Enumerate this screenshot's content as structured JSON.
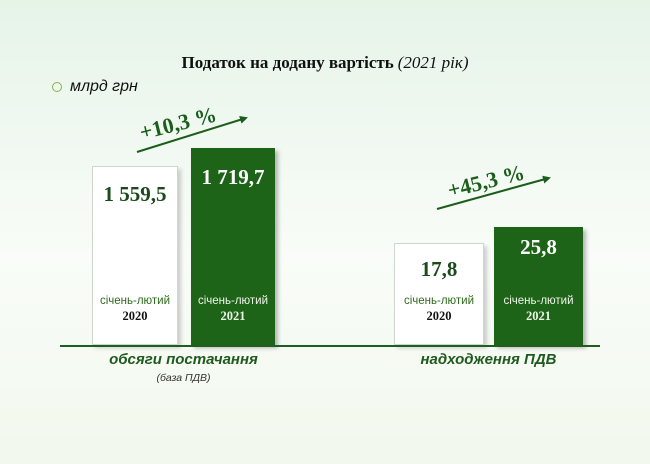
{
  "chart_data": {
    "type": "bar",
    "title": "Податок на додану вартість",
    "subtitle": "(2021 рік)",
    "unit": "млрд грн",
    "groups": [
      {
        "label": "обсяги постачання",
        "note": "(база ПДВ)",
        "change": "+10,3 %",
        "bars": [
          {
            "period": "січень-лютий",
            "year": "2020",
            "value": 1559.5,
            "label": "1 559,5"
          },
          {
            "period": "січень-лютий",
            "year": "2021",
            "value": 1719.7,
            "label": "1 719,7"
          }
        ]
      },
      {
        "label": "надходження ПДВ",
        "note": "",
        "change": "+45,3 %",
        "bars": [
          {
            "period": "січень-лютий",
            "year": "2020",
            "value": 17.8,
            "label": "17,8"
          },
          {
            "period": "січень-лютий",
            "year": "2021",
            "value": 25.8,
            "label": "25,8"
          }
        ]
      }
    ],
    "colors": {
      "year_2020": "#ffffff",
      "year_2021": "#1e6418",
      "accent": "#1b5e1b"
    },
    "grid": false
  }
}
